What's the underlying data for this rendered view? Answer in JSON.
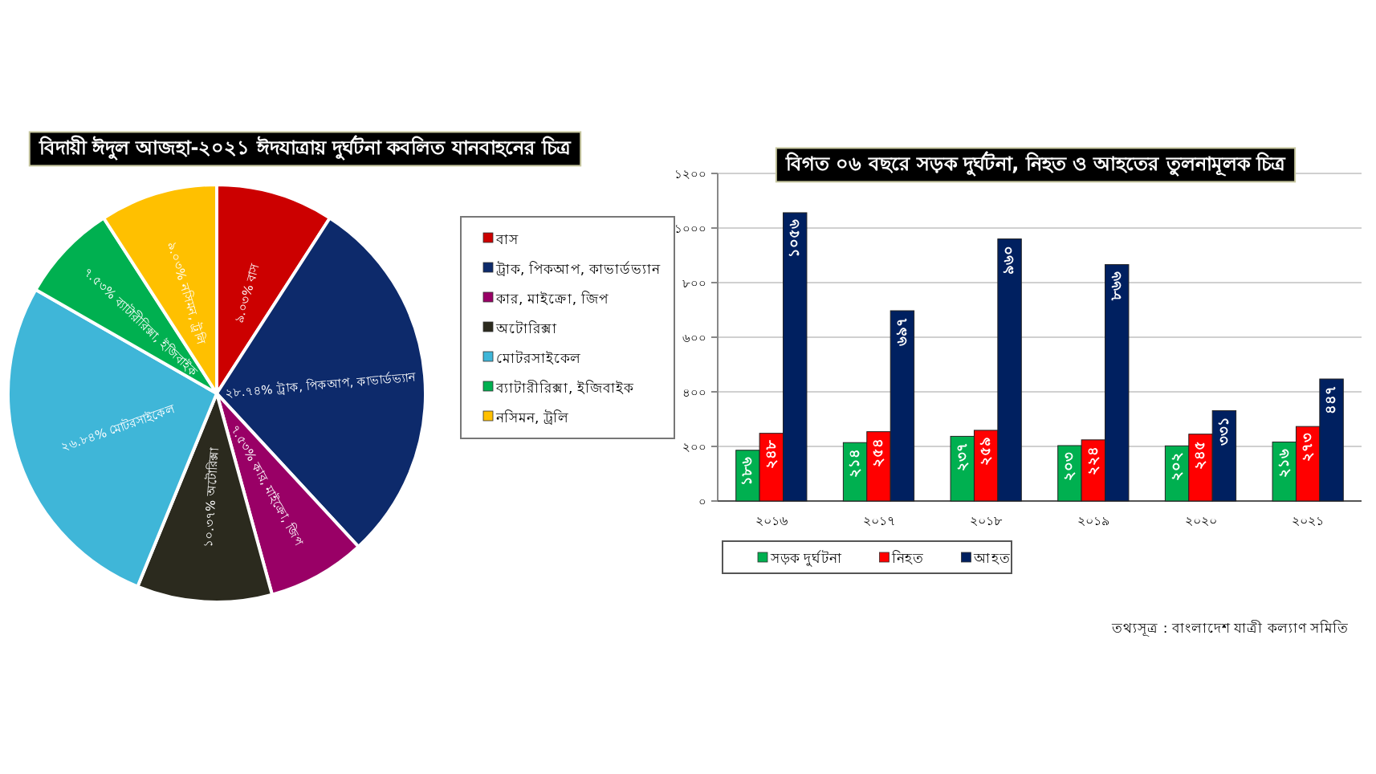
{
  "chart_data": [
    {
      "type": "pie",
      "title": "বিদায়ী ঈদুল আজহা-২০২১ ঈদযাত্রায় দুর্ঘটনা কবলিত যানবাহনের চিত্র",
      "categories": [
        "বাস",
        "ট্রাক, পিকআপ, কাভার্ডভ্যান",
        "কার, মাইক্রো, জিপ",
        "অটোরিক্সা",
        "মোটরসাইকেল",
        "ব্যাটারীরিক্সা, ইজিবাইক",
        "নসিমন, ট্রলি"
      ],
      "values": [
        9.03,
        28.74,
        7.53,
        10.37,
        26.84,
        7.53,
        9.03
      ],
      "value_labels": [
        "৯.০৩% বাস",
        "২৮.৭৪% ট্রাক, পিকআপ, কাভার্ডভ্যান",
        "৭.৫৩% কার, মাইক্রো, জিপ",
        "১০.৩৭% অটোরিক্সা",
        "২৬.৮৪% মোটরসাইকেল",
        "৭.৫৩% ব্যাটারীরিক্সা, ইজিবাইক",
        "৯.০৩% নসিমন, ট্রলি"
      ],
      "colors": [
        "#cc0000",
        "#0d2a6b",
        "#990066",
        "#2b2a1e",
        "#3fb6d8",
        "#00b050",
        "#ffc000"
      ],
      "legend": "right"
    },
    {
      "type": "bar",
      "title": "বিগত ০৬ বছরে সড়ক দুর্ঘটনা, নিহত ও আহতের তুলনামূলক চিত্র",
      "categories": [
        "২০১৬",
        "২০১৭",
        "২০১৮",
        "২০১৯",
        "২০২০",
        "২০২১"
      ],
      "series": [
        {
          "name": "সড়ক দুর্ঘটনা",
          "color": "#00b050",
          "values": [
            186,
            214,
            237,
            203,
            202,
            216
          ],
          "value_labels": [
            "১৮৬",
            "২১৪",
            "২৩৭",
            "২০৩",
            "২০২",
            "২১৬"
          ]
        },
        {
          "name": "নিহত",
          "color": "#ff0000",
          "values": [
            248,
            254,
            259,
            224,
            245,
            273
          ],
          "value_labels": [
            "২৪৮",
            "২৫৪",
            "২৫৯",
            "২২৪",
            "২৪৫",
            "২৭৩"
          ]
        },
        {
          "name": "আহত",
          "color": "#002060",
          "values": [
            1056,
            697,
            960,
            866,
            331,
            447
          ],
          "value_labels": [
            "১০৫৬",
            "৬৯৭",
            "৯৬০",
            "৮৬৬",
            "৩৩১",
            "৪৪৭"
          ]
        }
      ],
      "ylim": [
        0,
        1200
      ],
      "yticks": [
        {
          "value": 0,
          "label": "০"
        },
        {
          "value": 200,
          "label": "২০০"
        },
        {
          "value": 400,
          "label": "৪০০"
        },
        {
          "value": 600,
          "label": "৬০০"
        },
        {
          "value": 800,
          "label": "৮০০"
        },
        {
          "value": 1000,
          "label": "১০০০"
        },
        {
          "value": 1200,
          "label": "১২০০"
        }
      ],
      "grid": "y",
      "legend": "bottom left",
      "annotations": [
        "তথ্যসূত্র : বাংলাদেশ যাত্রী কল্যাণ সমিতি"
      ]
    }
  ]
}
